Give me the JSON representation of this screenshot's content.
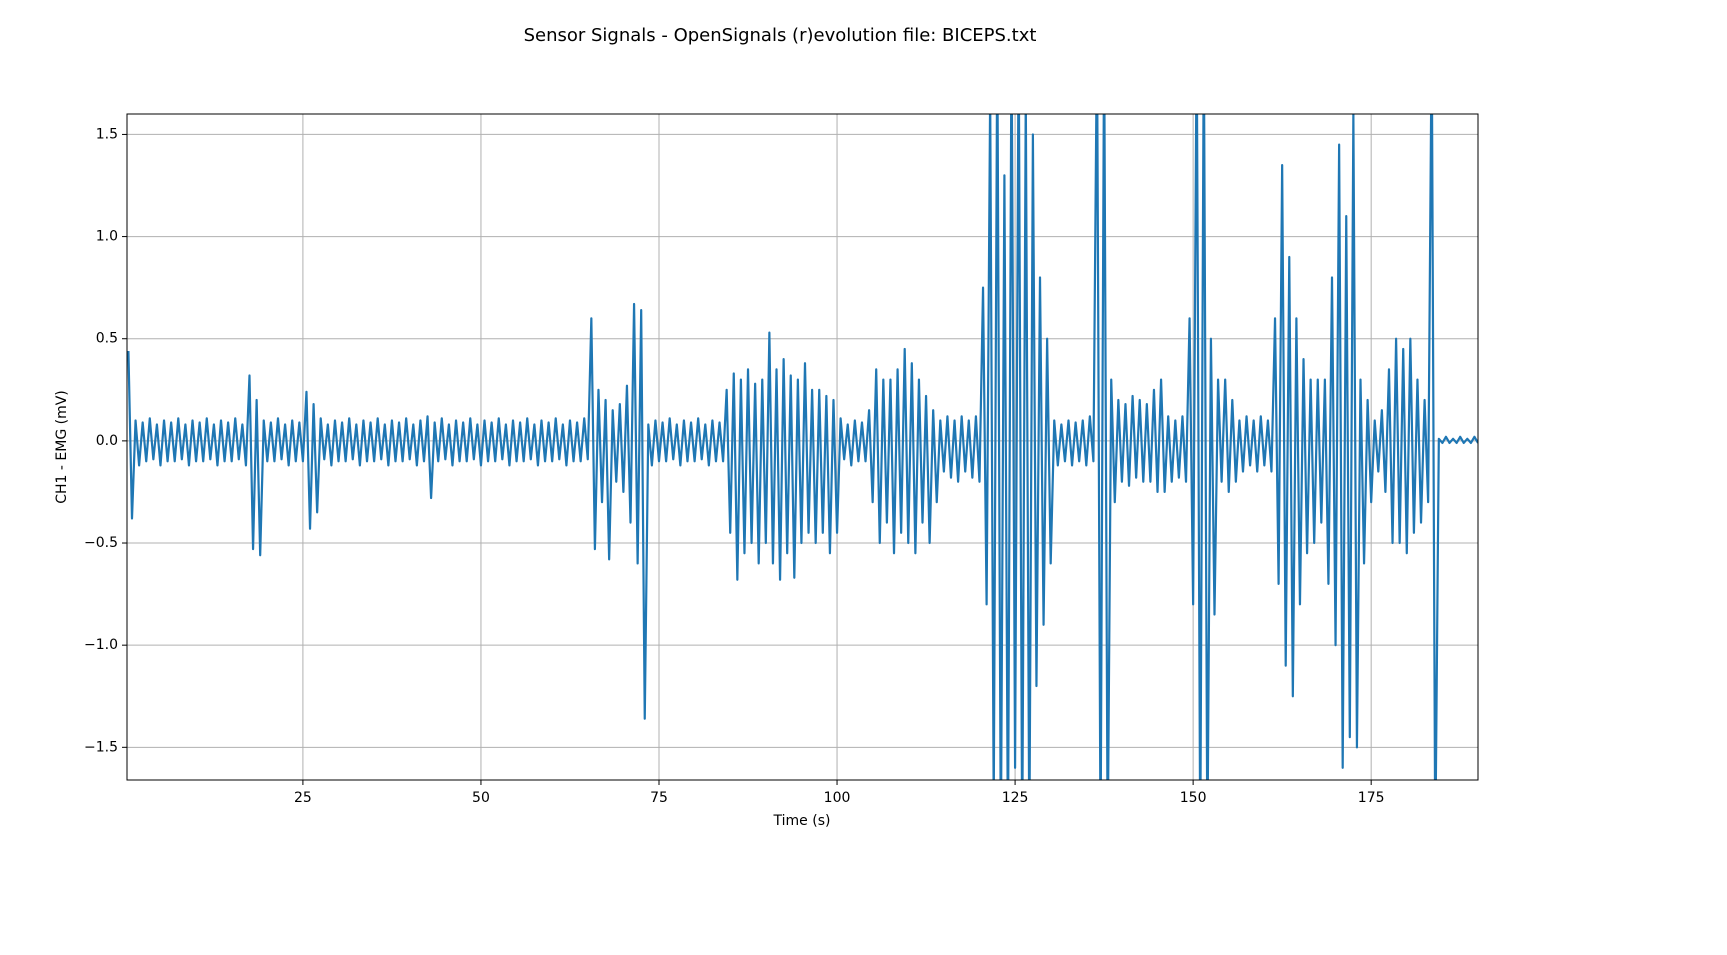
{
  "chart_data": {
    "type": "line",
    "title": "Sensor Signals - OpenSignals (r)evolution file: BICEPS.txt",
    "x_label": "Time (s)",
    "y_label": "CH1 - EMG (mV)",
    "xlim": [
      0.3,
      190
    ],
    "ylim": [
      -1.66,
      1.6
    ],
    "xticks": [
      25,
      50,
      75,
      100,
      125,
      150,
      175
    ],
    "yticks": [
      {
        "value": -1.5,
        "label": "−1.5"
      },
      {
        "value": -1,
        "label": "−1.0"
      },
      {
        "value": -0.5,
        "label": "−0.5"
      },
      {
        "value": 0,
        "label": "0.0"
      },
      0.5,
      {
        "value": 1,
        "label": "1.0"
      },
      1.5
    ],
    "grid": true,
    "x": [
      0.5,
      1,
      1.5,
      2,
      2.5,
      3,
      3.5,
      4,
      4.5,
      5,
      5.5,
      6,
      6.5,
      7,
      7.5,
      8,
      8.5,
      9,
      9.5,
      10,
      10.5,
      11,
      11.5,
      12,
      12.5,
      13,
      13.5,
      14,
      14.5,
      15,
      15.5,
      16,
      16.5,
      17,
      17.5,
      18,
      18.5,
      19,
      19.5,
      20,
      20.5,
      21,
      21.5,
      22,
      22.5,
      23,
      23.5,
      24,
      24.5,
      25,
      25.5,
      26,
      26.5,
      27,
      27.5,
      28,
      28.5,
      29,
      29.5,
      30,
      30.5,
      31,
      31.5,
      32,
      32.5,
      33,
      33.5,
      34,
      34.5,
      35,
      35.5,
      36,
      36.5,
      37,
      37.5,
      38,
      38.5,
      39,
      39.5,
      40,
      40.5,
      41,
      41.5,
      42,
      42.5,
      43,
      43.5,
      44,
      44.5,
      45,
      45.5,
      46,
      46.5,
      47,
      47.5,
      48,
      48.5,
      49,
      49.5,
      50,
      50.5,
      51,
      51.5,
      52,
      52.5,
      53,
      53.5,
      54,
      54.5,
      55,
      55.5,
      56,
      56.5,
      57,
      57.5,
      58,
      58.5,
      59,
      59.5,
      60,
      60.5,
      61,
      61.5,
      62,
      62.5,
      63,
      63.5,
      64,
      64.5,
      65,
      65.5,
      66,
      66.5,
      67,
      67.5,
      68,
      68.5,
      69,
      69.5,
      70,
      70.5,
      71,
      71.5,
      72,
      72.5,
      73,
      73.5,
      74,
      74.5,
      75,
      75.5,
      76,
      76.5,
      77,
      77.5,
      78,
      78.5,
      79,
      79.5,
      80,
      80.5,
      81,
      81.5,
      82,
      82.5,
      83,
      83.5,
      84,
      84.5,
      85,
      85.5,
      86,
      86.5,
      87,
      87.5,
      88,
      88.5,
      89,
      89.5,
      90,
      90.5,
      91,
      91.5,
      92,
      92.5,
      93,
      93.5,
      94,
      94.5,
      95,
      95.5,
      96,
      96.5,
      97,
      97.5,
      98,
      98.5,
      99,
      99.5,
      100,
      100.5,
      101,
      101.5,
      102,
      102.5,
      103,
      103.5,
      104,
      104.5,
      105,
      105.5,
      106,
      106.5,
      107,
      107.5,
      108,
      108.5,
      109,
      109.5,
      110,
      110.5,
      111,
      111.5,
      112,
      112.5,
      113,
      113.5,
      114,
      114.5,
      115,
      115.5,
      116,
      116.5,
      117,
      117.5,
      118,
      118.5,
      119,
      119.5,
      120,
      120.5,
      121,
      121.5,
      122,
      122.5,
      123,
      123.5,
      124,
      124.5,
      125,
      125.5,
      126,
      126.5,
      127,
      127.5,
      128,
      128.5,
      129,
      129.5,
      130,
      130.5,
      131,
      131.5,
      132,
      132.5,
      133,
      133.5,
      134,
      134.5,
      135,
      135.5,
      136,
      136.5,
      137,
      137.5,
      138,
      138.5,
      139,
      139.5,
      140,
      140.5,
      141,
      141.5,
      142,
      142.5,
      143,
      143.5,
      144,
      144.5,
      145,
      145.5,
      146,
      146.5,
      147,
      147.5,
      148,
      148.5,
      149,
      149.5,
      150,
      150.5,
      151,
      151.5,
      152,
      152.5,
      153,
      153.5,
      154,
      154.5,
      155,
      155.5,
      156,
      156.5,
      157,
      157.5,
      158,
      158.5,
      159,
      159.5,
      160,
      160.5,
      161,
      161.5,
      162,
      162.5,
      163,
      163.5,
      164,
      164.5,
      165,
      165.5,
      166,
      166.5,
      167,
      167.5,
      168,
      168.5,
      169,
      169.5,
      170,
      170.5,
      171,
      171.5,
      172,
      172.5,
      173,
      173.5,
      174,
      174.5,
      175,
      175.5,
      176,
      176.5,
      177,
      177.5,
      178,
      178.5,
      179,
      179.5,
      180,
      180.5,
      181,
      181.5,
      182,
      182.5,
      183,
      183.5,
      184,
      184.5,
      185,
      185.5,
      186,
      186.5,
      187,
      187.5,
      188,
      188.5,
      189,
      189.5,
      190
    ],
    "series": [
      {
        "color": "#1f77b4",
        "values": [
          0.44,
          -0.38,
          0.1,
          -0.12,
          0.09,
          -0.1,
          0.11,
          -0.09,
          0.08,
          -0.12,
          0.1,
          -0.1,
          0.09,
          -0.1,
          0.11,
          -0.09,
          0.08,
          -0.12,
          0.1,
          -0.1,
          0.09,
          -0.1,
          0.11,
          -0.09,
          0.08,
          -0.12,
          0.1,
          -0.1,
          0.09,
          -0.1,
          0.11,
          -0.09,
          0.08,
          -0.12,
          0.32,
          -0.53,
          0.2,
          -0.56,
          0.1,
          -0.1,
          0.09,
          -0.1,
          0.11,
          -0.09,
          0.08,
          -0.12,
          0.1,
          -0.1,
          0.09,
          -0.1,
          0.24,
          -0.43,
          0.18,
          -0.35,
          0.11,
          -0.09,
          0.08,
          -0.12,
          0.1,
          -0.1,
          0.09,
          -0.1,
          0.11,
          -0.09,
          0.08,
          -0.12,
          0.1,
          -0.1,
          0.09,
          -0.1,
          0.11,
          -0.09,
          0.08,
          -0.12,
          0.1,
          -0.1,
          0.09,
          -0.1,
          0.11,
          -0.09,
          0.08,
          -0.12,
          0.1,
          -0.1,
          0.12,
          -0.28,
          0.09,
          -0.1,
          0.11,
          -0.09,
          0.08,
          -0.12,
          0.1,
          -0.1,
          0.09,
          -0.1,
          0.11,
          -0.09,
          0.08,
          -0.12,
          0.1,
          -0.1,
          0.09,
          -0.1,
          0.11,
          -0.09,
          0.08,
          -0.12,
          0.1,
          -0.1,
          0.09,
          -0.1,
          0.11,
          -0.09,
          0.08,
          -0.12,
          0.1,
          -0.1,
          0.09,
          -0.1,
          0.11,
          -0.09,
          0.08,
          -0.12,
          0.1,
          -0.1,
          0.09,
          -0.1,
          0.11,
          -0.09,
          0.6,
          -0.53,
          0.25,
          -0.3,
          0.2,
          -0.58,
          0.15,
          -0.2,
          0.18,
          -0.25,
          0.27,
          -0.4,
          0.67,
          -0.6,
          0.64,
          -1.36,
          0.08,
          -0.12,
          0.1,
          -0.1,
          0.09,
          -0.1,
          0.11,
          -0.09,
          0.08,
          -0.12,
          0.1,
          -0.1,
          0.09,
          -0.1,
          0.11,
          -0.09,
          0.08,
          -0.12,
          0.1,
          -0.1,
          0.09,
          -0.1,
          0.25,
          -0.45,
          0.33,
          -0.68,
          0.3,
          -0.55,
          0.35,
          -0.5,
          0.28,
          -0.6,
          0.3,
          -0.5,
          0.53,
          -0.6,
          0.35,
          -0.68,
          0.4,
          -0.55,
          0.32,
          -0.67,
          0.3,
          -0.5,
          0.38,
          -0.45,
          0.25,
          -0.5,
          0.25,
          -0.45,
          0.22,
          -0.55,
          0.2,
          -0.45,
          0.11,
          -0.09,
          0.08,
          -0.12,
          0.1,
          -0.1,
          0.09,
          -0.1,
          0.15,
          -0.3,
          0.35,
          -0.5,
          0.3,
          -0.4,
          0.3,
          -0.55,
          0.35,
          -0.45,
          0.45,
          -0.5,
          0.38,
          -0.55,
          0.3,
          -0.4,
          0.22,
          -0.5,
          0.15,
          -0.3,
          0.1,
          -0.15,
          0.12,
          -0.18,
          0.1,
          -0.2,
          0.12,
          -0.15,
          0.1,
          -0.18,
          0.12,
          -0.2,
          0.75,
          -0.8,
          1.7,
          -1.8,
          2,
          -2,
          1.3,
          -2,
          2,
          -1.6,
          2,
          -2,
          1.7,
          -2,
          1.5,
          -1.2,
          0.8,
          -0.9,
          0.5,
          -0.6,
          0.1,
          -0.12,
          0.08,
          -0.1,
          0.1,
          -0.12,
          0.09,
          -0.1,
          0.1,
          -0.12,
          0.12,
          -0.1,
          2,
          -2,
          2,
          -2,
          0.3,
          -0.3,
          0.2,
          -0.2,
          0.18,
          -0.22,
          0.22,
          -0.18,
          0.2,
          -0.2,
          0.18,
          -0.2,
          0.25,
          -0.25,
          0.3,
          -0.25,
          0.12,
          -0.2,
          0.1,
          -0.18,
          0.12,
          -0.2,
          0.6,
          -0.8,
          2,
          -2,
          2,
          -2,
          0.5,
          -0.85,
          0.3,
          -0.2,
          0.3,
          -0.25,
          0.2,
          -0.2,
          0.1,
          -0.15,
          0.12,
          -0.12,
          0.1,
          -0.15,
          0.12,
          -0.12,
          0.1,
          -0.15,
          0.6,
          -0.7,
          1.35,
          -1.1,
          0.9,
          -1.25,
          0.6,
          -0.8,
          0.4,
          -0.55,
          0.3,
          -0.5,
          0.3,
          -0.4,
          0.3,
          -0.7,
          0.8,
          -1.0,
          1.45,
          -1.6,
          1.1,
          -1.45,
          1.6,
          -1.5,
          0.3,
          -0.6,
          0.2,
          -0.3,
          0.1,
          -0.15,
          0.15,
          -0.25,
          0.35,
          -0.5,
          0.5,
          -0.5,
          0.45,
          -0.55,
          0.5,
          -0.45,
          0.3,
          -0.4,
          0.2,
          -0.3,
          2,
          -2,
          0.01,
          -0.01,
          0.02,
          -0.01,
          0.01,
          -0.01,
          0.02,
          -0.01,
          0.01,
          -0.01,
          0.02,
          -0.01
        ]
      }
    ]
  }
}
